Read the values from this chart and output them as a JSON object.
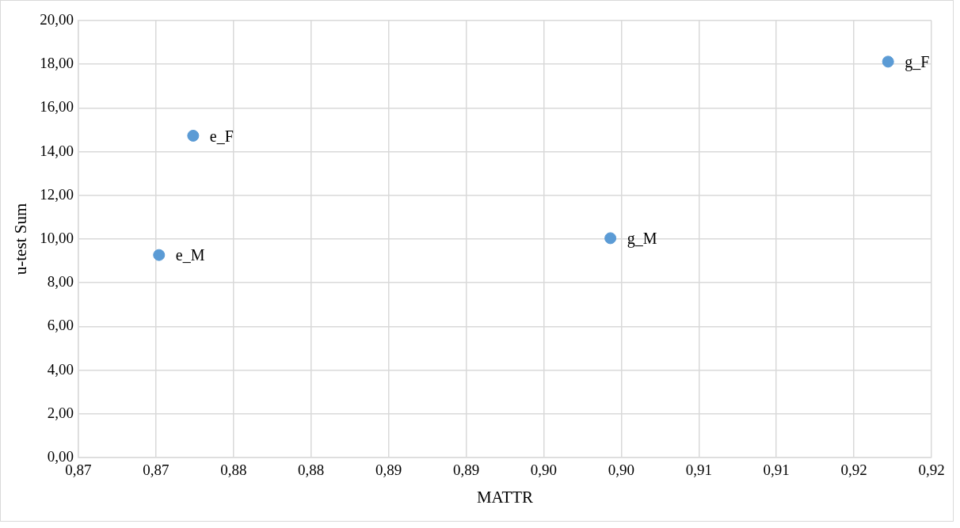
{
  "chart_data": {
    "type": "scatter",
    "xlabel": "MATTR",
    "ylabel": "u-test Sum",
    "series": [
      {
        "name": "e_M",
        "color": "#5b9bd5",
        "x": [
          0.8702
        ],
        "values": [
          9.27
        ]
      },
      {
        "name": "e_F",
        "color": "#5b9bd5",
        "x": [
          0.8724
        ],
        "values": [
          14.73
        ]
      },
      {
        "name": "g_M",
        "color": "#5b9bd5",
        "x": [
          0.8993
        ],
        "values": [
          10.04
        ]
      },
      {
        "name": "g_F",
        "color": "#5b9bd5",
        "x": [
          0.9172
        ],
        "values": [
          18.12
        ]
      }
    ],
    "xlim": [
      0.865,
      0.92
    ],
    "xticks": [
      {
        "value": 0.865,
        "label": "0,87"
      },
      {
        "value": 0.87,
        "label": "0,87"
      },
      {
        "value": 0.875,
        "label": "0,88"
      },
      {
        "value": 0.88,
        "label": "0,88"
      },
      {
        "value": 0.885,
        "label": "0,89"
      },
      {
        "value": 0.89,
        "label": "0,89"
      },
      {
        "value": 0.895,
        "label": "0,90"
      },
      {
        "value": 0.9,
        "label": "0,90"
      },
      {
        "value": 0.905,
        "label": "0,91"
      },
      {
        "value": 0.91,
        "label": "0,91"
      },
      {
        "value": 0.915,
        "label": "0,92"
      },
      {
        "value": 0.92,
        "label": "0,92"
      }
    ],
    "ylim": [
      0,
      20
    ],
    "yticks": [
      {
        "value": 0,
        "label": "0,00"
      },
      {
        "value": 2,
        "label": "2,00"
      },
      {
        "value": 4,
        "label": "4,00"
      },
      {
        "value": 6,
        "label": "6,00"
      },
      {
        "value": 8,
        "label": "8,00"
      },
      {
        "value": 10,
        "label": "10,00"
      },
      {
        "value": 12,
        "label": "12,00"
      },
      {
        "value": 14,
        "label": "14,00"
      },
      {
        "value": 16,
        "label": "16,00"
      },
      {
        "value": 18,
        "label": "18,00"
      },
      {
        "value": 20,
        "label": "20,00"
      }
    ],
    "grid": true,
    "legend": false,
    "marker": "circle"
  }
}
